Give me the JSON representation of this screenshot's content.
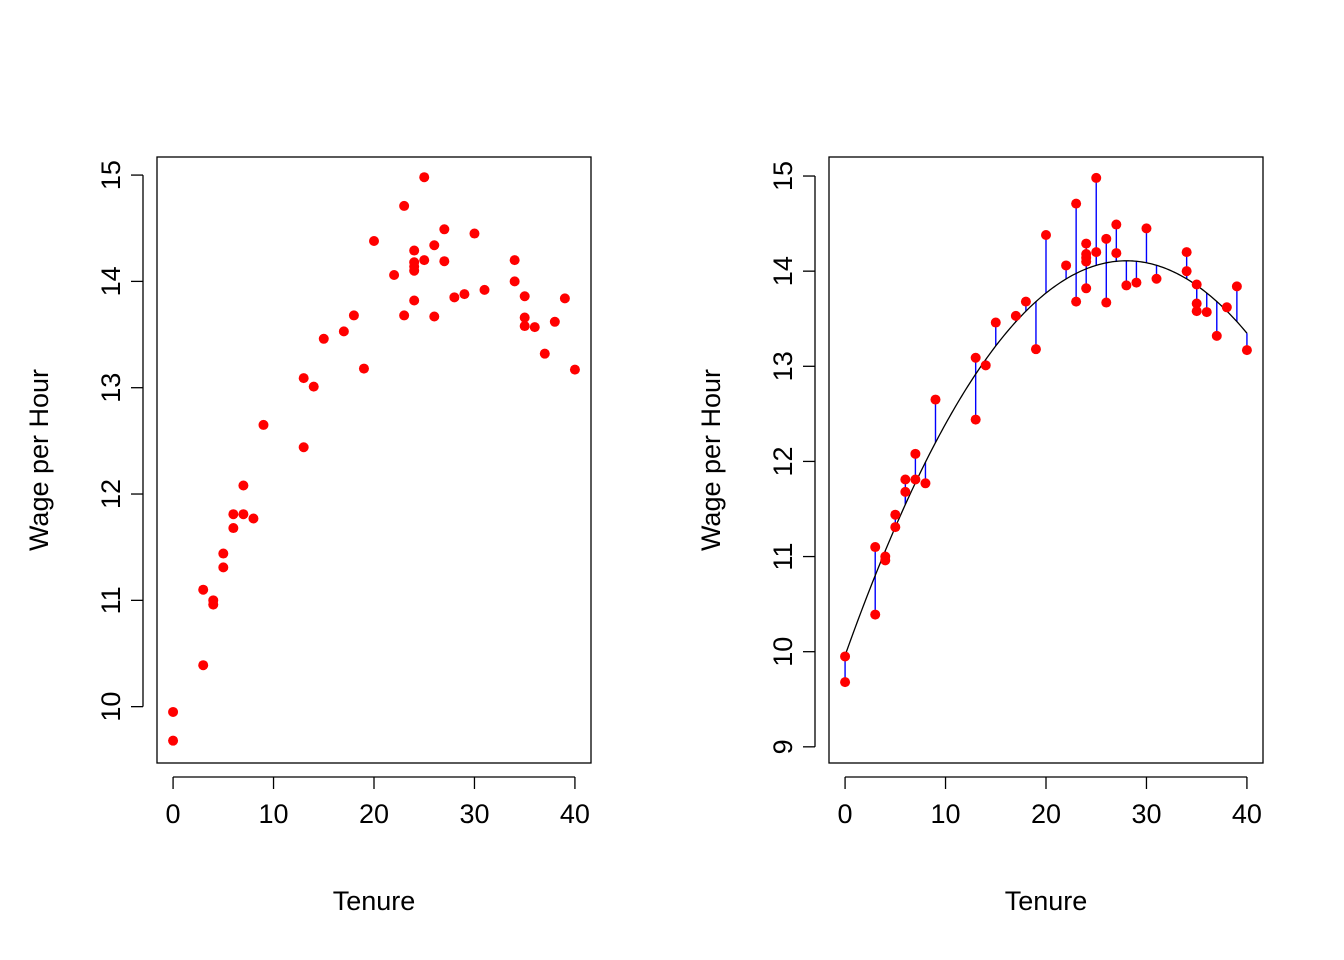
{
  "colors": {
    "points": "#ff0000",
    "residuals": "#0000ff",
    "fit": "#000000",
    "axes": "#000000"
  },
  "chart_data": [
    {
      "type": "scatter",
      "title": "",
      "xlabel": "Tenure",
      "ylabel": "Wage per Hour",
      "xlim": [
        -1.6,
        41.6
      ],
      "ylim": [
        9.47,
        15.17
      ],
      "x_ticks": [
        0,
        10,
        20,
        30,
        40
      ],
      "y_ticks": [
        10,
        11,
        12,
        13,
        14,
        15
      ],
      "grid": false,
      "legend": "none",
      "points": [
        [
          0,
          9.95
        ],
        [
          0,
          9.68
        ],
        [
          3,
          11.1
        ],
        [
          3,
          10.39
        ],
        [
          4,
          11.0
        ],
        [
          4,
          10.96
        ],
        [
          5,
          11.44
        ],
        [
          5,
          11.31
        ],
        [
          6,
          11.81
        ],
        [
          6,
          11.68
        ],
        [
          7,
          12.08
        ],
        [
          7,
          11.81
        ],
        [
          8,
          11.77
        ],
        [
          9,
          12.65
        ],
        [
          13,
          13.09
        ],
        [
          13,
          12.44
        ],
        [
          14,
          13.01
        ],
        [
          15,
          13.46
        ],
        [
          17,
          13.53
        ],
        [
          18,
          13.68
        ],
        [
          19,
          13.18
        ],
        [
          20,
          14.38
        ],
        [
          22,
          14.06
        ],
        [
          23,
          14.71
        ],
        [
          23,
          13.68
        ],
        [
          24,
          14.29
        ],
        [
          24,
          14.18
        ],
        [
          24,
          14.14
        ],
        [
          24,
          14.1
        ],
        [
          24,
          13.82
        ],
        [
          25,
          14.98
        ],
        [
          25,
          14.2
        ],
        [
          26,
          14.34
        ],
        [
          26,
          13.67
        ],
        [
          27,
          14.49
        ],
        [
          27,
          14.19
        ],
        [
          28,
          13.85
        ],
        [
          29,
          13.88
        ],
        [
          30,
          14.45
        ],
        [
          31,
          13.92
        ],
        [
          34,
          14.2
        ],
        [
          34,
          14.0
        ],
        [
          35,
          13.86
        ],
        [
          35,
          13.66
        ],
        [
          35,
          13.58
        ],
        [
          36,
          13.57
        ],
        [
          37,
          13.32
        ],
        [
          38,
          13.62
        ],
        [
          39,
          13.84
        ],
        [
          40,
          13.17
        ]
      ]
    },
    {
      "type": "scatter",
      "title": "",
      "xlabel": "Tenure",
      "ylabel": "Wage per Hour",
      "xlim": [
        -1.6,
        41.6
      ],
      "ylim": [
        8.83,
        15.2
      ],
      "x_ticks": [
        0,
        10,
        20,
        30,
        40
      ],
      "y_ticks": [
        9,
        10,
        11,
        12,
        13,
        14,
        15
      ],
      "grid": false,
      "legend": "none",
      "fit": {
        "kind": "quadratic",
        "coefficients": [
          9.96,
          0.2963,
          -0.00529
        ]
      },
      "residual_segments": true,
      "points": [
        [
          0,
          9.95
        ],
        [
          0,
          9.68
        ],
        [
          3,
          11.1
        ],
        [
          3,
          10.39
        ],
        [
          4,
          11.0
        ],
        [
          4,
          10.96
        ],
        [
          5,
          11.44
        ],
        [
          5,
          11.31
        ],
        [
          6,
          11.81
        ],
        [
          6,
          11.68
        ],
        [
          7,
          12.08
        ],
        [
          7,
          11.81
        ],
        [
          8,
          11.77
        ],
        [
          9,
          12.65
        ],
        [
          13,
          13.09
        ],
        [
          13,
          12.44
        ],
        [
          14,
          13.01
        ],
        [
          15,
          13.46
        ],
        [
          17,
          13.53
        ],
        [
          18,
          13.68
        ],
        [
          19,
          13.18
        ],
        [
          20,
          14.38
        ],
        [
          22,
          14.06
        ],
        [
          23,
          14.71
        ],
        [
          23,
          13.68
        ],
        [
          24,
          14.29
        ],
        [
          24,
          14.18
        ],
        [
          24,
          14.14
        ],
        [
          24,
          14.1
        ],
        [
          24,
          13.82
        ],
        [
          25,
          14.98
        ],
        [
          25,
          14.2
        ],
        [
          26,
          14.34
        ],
        [
          26,
          13.67
        ],
        [
          27,
          14.49
        ],
        [
          27,
          14.19
        ],
        [
          28,
          13.85
        ],
        [
          29,
          13.88
        ],
        [
          30,
          14.45
        ],
        [
          31,
          13.92
        ],
        [
          34,
          14.2
        ],
        [
          34,
          14.0
        ],
        [
          35,
          13.86
        ],
        [
          35,
          13.66
        ],
        [
          35,
          13.58
        ],
        [
          36,
          13.57
        ],
        [
          37,
          13.32
        ],
        [
          38,
          13.62
        ],
        [
          39,
          13.84
        ],
        [
          40,
          13.17
        ]
      ]
    }
  ]
}
